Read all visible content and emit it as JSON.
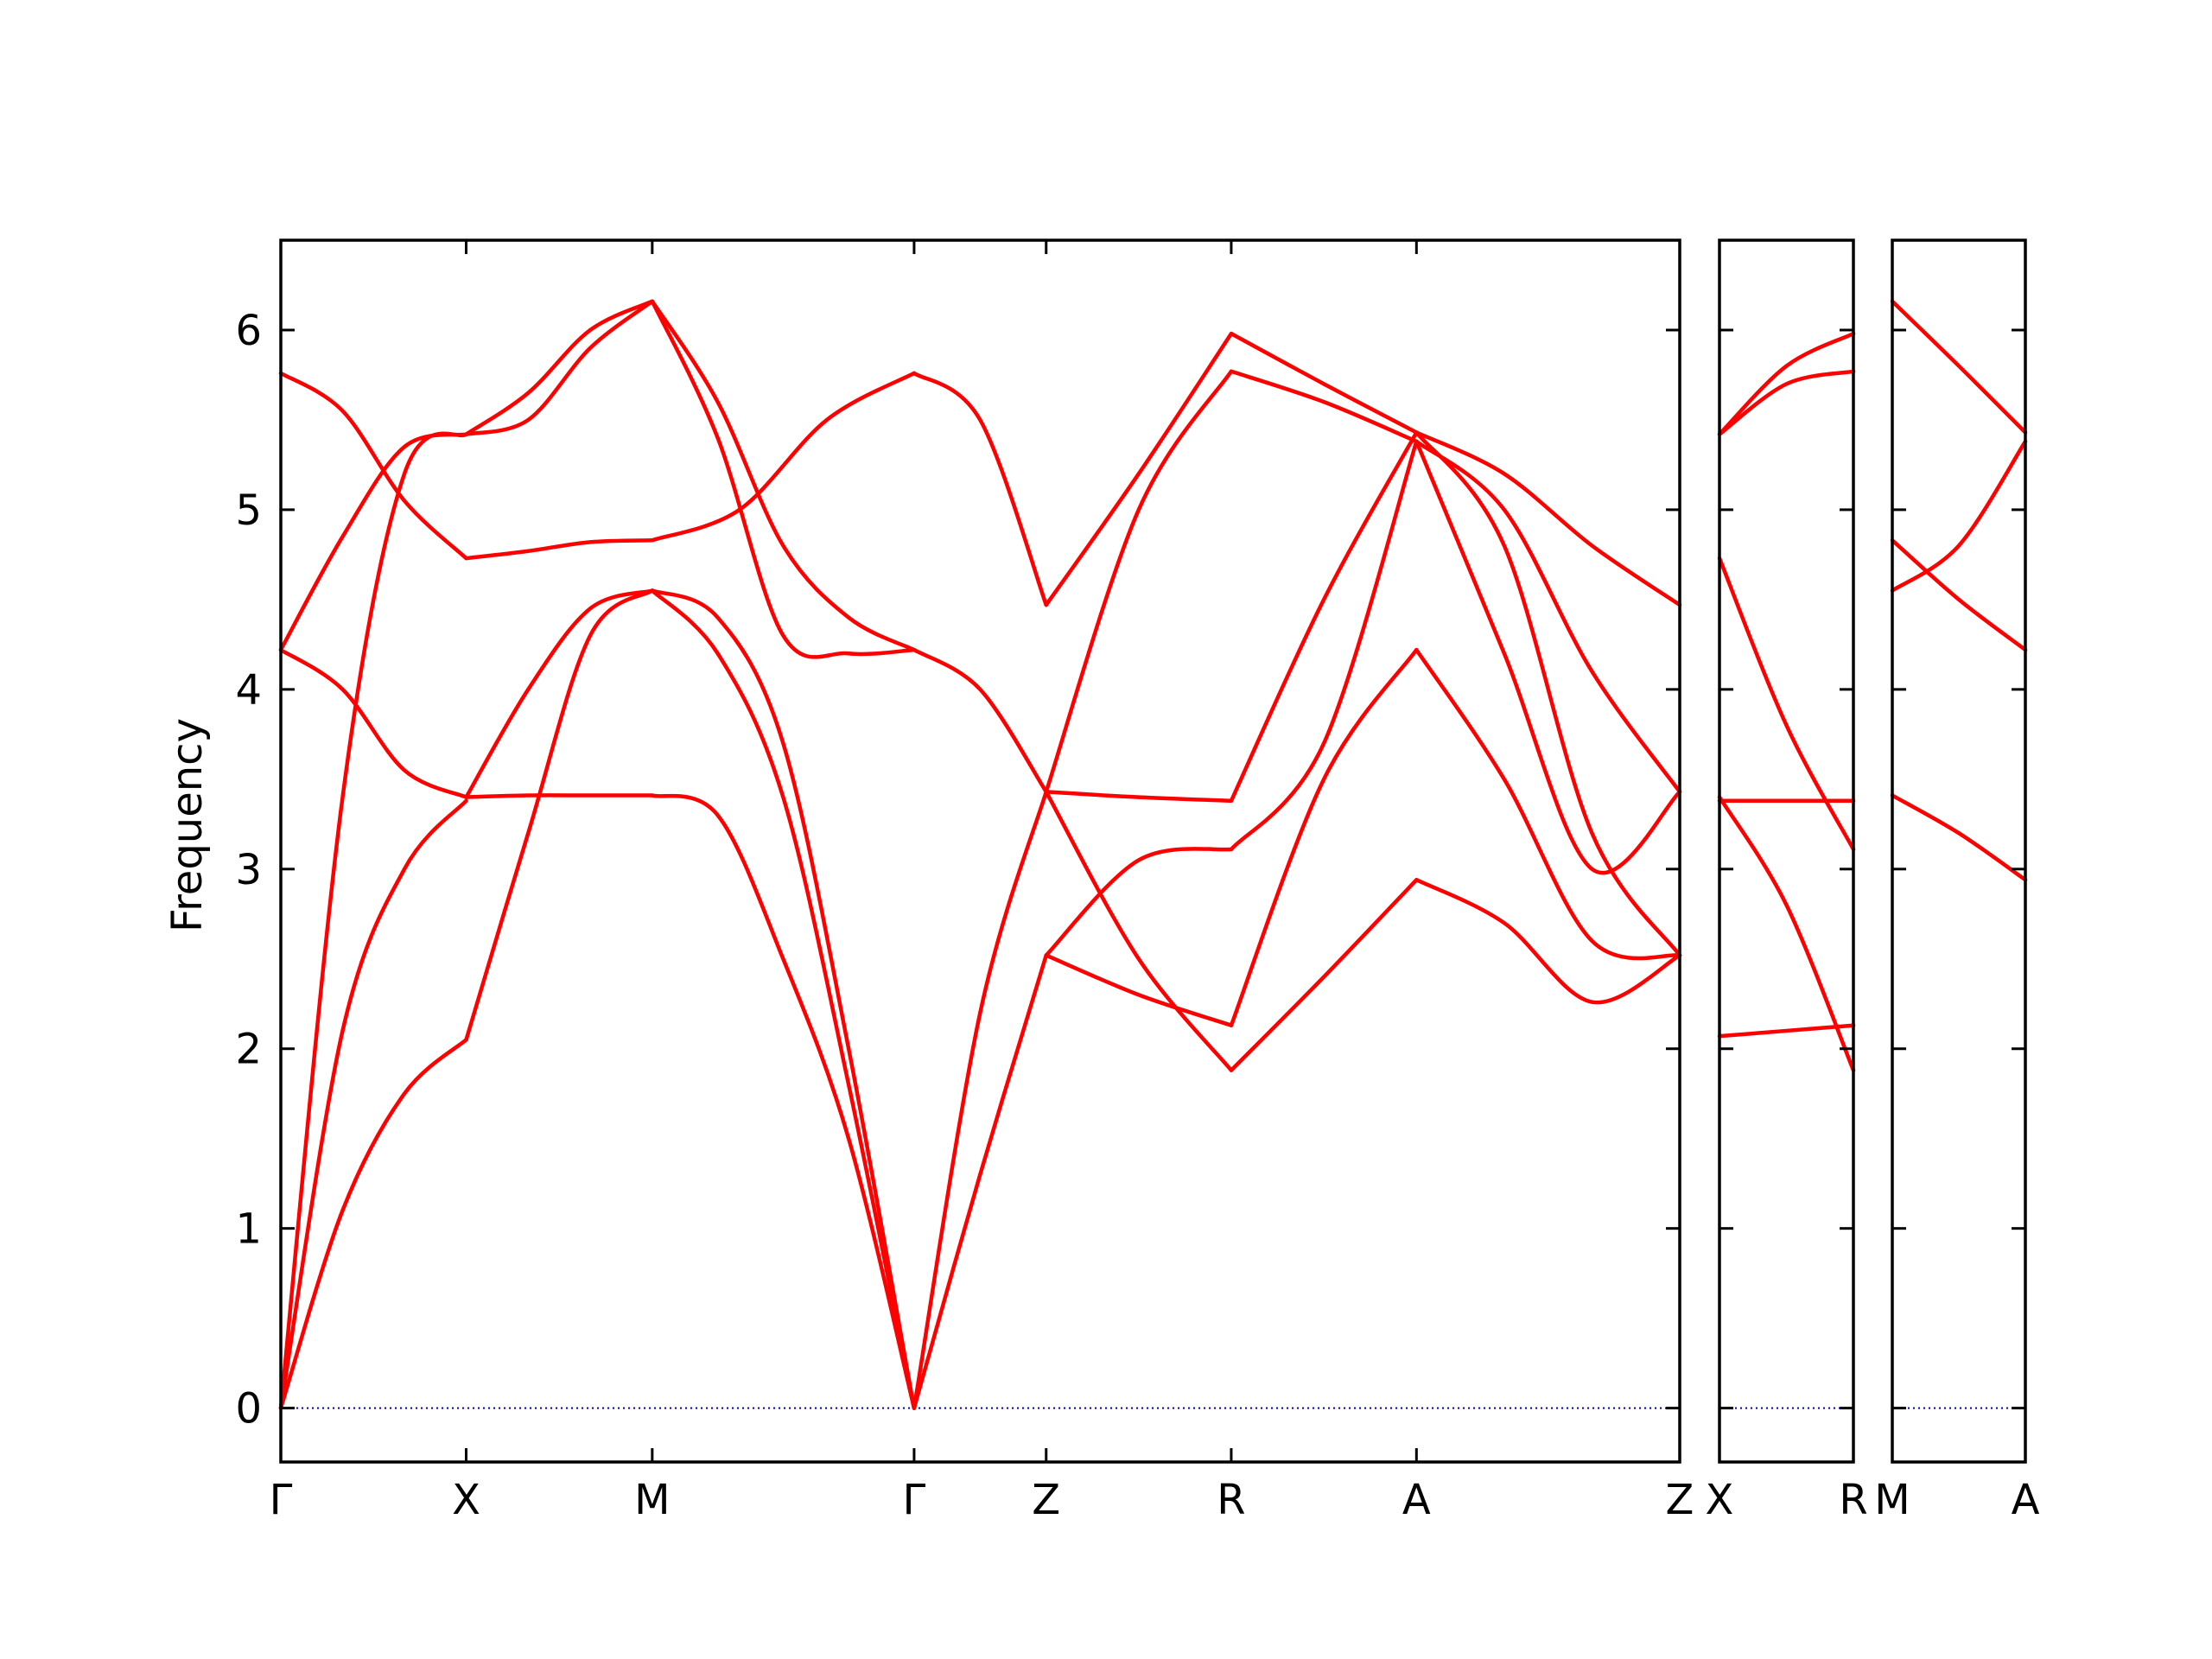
{
  "chart_data": {
    "type": "line",
    "ylabel": "Frequency",
    "ylim": [
      -0.3,
      6.5
    ],
    "yticks": [
      0,
      1,
      2,
      3,
      4,
      5,
      6
    ],
    "grid": false,
    "colors": {
      "bands": "#ff0000",
      "zero_line": "#0000cc",
      "axes": "#000000"
    },
    "panels": [
      {
        "labels": [
          "Γ",
          "X",
          "M",
          "Γ",
          "Z",
          "R",
          "A",
          "Z"
        ],
        "segments": [
          {
            "from": "Γ",
            "to": "X",
            "bands": [
              [
                0.0,
                1.1,
                1.75,
                2.05
              ],
              [
                0.0,
                2.1,
                3.0,
                3.38
              ],
              [
                0.0,
                3.4,
                5.2,
                5.42
              ],
              [
                4.22,
                4.0,
                3.55,
                3.4
              ],
              [
                4.22,
                4.85,
                5.35,
                5.42
              ],
              [
                5.76,
                5.55,
                5.05,
                4.73
              ]
            ]
          },
          {
            "from": "X",
            "to": "M",
            "bands": [
              [
                2.05,
                3.2,
                4.3,
                4.55
              ],
              [
                3.4,
                3.41,
                3.41,
                3.41
              ],
              [
                3.4,
                4.0,
                4.45,
                4.55
              ],
              [
                4.73,
                4.77,
                4.82,
                4.83
              ],
              [
                5.42,
                5.5,
                5.9,
                6.16
              ],
              [
                5.42,
                5.65,
                6.0,
                6.16
              ]
            ]
          },
          {
            "from": "M",
            "to": "Γ",
            "bands": [
              [
                3.41,
                3.3,
                2.5,
                1.5,
                0.0
              ],
              [
                4.55,
                4.4,
                3.7,
                2.0,
                0.0
              ],
              [
                4.55,
                4.2,
                3.4,
                1.8,
                0.0
              ],
              [
                6.16,
                5.4,
                4.3,
                4.2,
                4.22
              ],
              [
                6.16,
                5.6,
                4.8,
                4.4,
                4.22
              ],
              [
                4.83,
                5.0,
                5.5,
                5.76
              ]
            ]
          },
          {
            "from": "Γ",
            "to": "Z",
            "bands": [
              [
                0.0,
                1.3,
                2.52
              ],
              [
                0.0,
                2.2,
                3.43
              ],
              [
                4.22,
                4.0,
                3.43
              ],
              [
                5.76,
                5.5,
                4.47
              ]
            ]
          },
          {
            "from": "Z",
            "to": "R",
            "bands": [
              [
                2.52,
                2.3,
                2.13
              ],
              [
                3.43,
                2.5,
                1.88
              ],
              [
                2.52,
                3.05,
                3.11
              ],
              [
                3.43,
                3.4,
                3.38
              ],
              [
                3.43,
                5.0,
                5.77
              ],
              [
                4.47,
                5.2,
                5.98
              ]
            ]
          },
          {
            "from": "R",
            "to": "A",
            "bands": [
              [
                1.88,
                2.4,
                2.94
              ],
              [
                2.13,
                3.5,
                4.22
              ],
              [
                3.11,
                3.7,
                5.38
              ],
              [
                3.38,
                4.5,
                5.43
              ],
              [
                5.77,
                5.6,
                5.38
              ],
              [
                5.98,
                5.7,
                5.43
              ]
            ]
          },
          {
            "from": "A",
            "to": "Z",
            "bands": [
              [
                2.94,
                2.7,
                2.26,
                2.52
              ],
              [
                4.22,
                3.5,
                2.6,
                2.52
              ],
              [
                5.38,
                4.2,
                3.0,
                3.43
              ],
              [
                5.43,
                4.8,
                3.2,
                2.52
              ],
              [
                5.38,
                5.0,
                4.1,
                3.43
              ],
              [
                5.43,
                5.2,
                4.8,
                4.47
              ]
            ]
          }
        ]
      },
      {
        "labels": [
          "X",
          "R"
        ],
        "segments": [
          {
            "from": "X",
            "to": "R",
            "bands": [
              [
                2.07,
                2.1,
                2.13
              ],
              [
                3.4,
                2.8,
                1.88
              ],
              [
                3.38,
                3.38,
                3.38
              ],
              [
                4.73,
                3.8,
                3.11
              ],
              [
                5.42,
                5.7,
                5.77
              ],
              [
                5.42,
                5.8,
                5.98
              ]
            ]
          }
        ]
      },
      {
        "labels": [
          "M",
          "A"
        ],
        "segments": [
          {
            "from": "M",
            "to": "A",
            "bands": [
              [
                3.41,
                3.2,
                2.94
              ],
              [
                4.55,
                4.8,
                5.38
              ],
              [
                4.83,
                4.5,
                4.22
              ],
              [
                6.16,
                5.8,
                5.43
              ]
            ]
          }
        ]
      }
    ]
  }
}
